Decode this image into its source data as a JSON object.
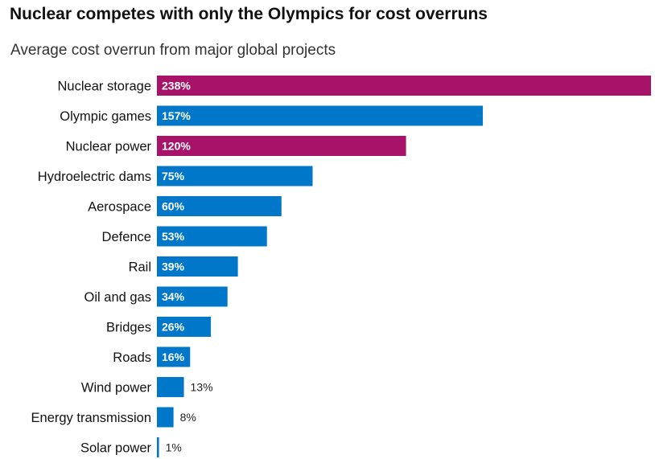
{
  "chart_data": {
    "type": "bar",
    "orientation": "horizontal",
    "title": "Nuclear competes with only the Olympics for cost overruns",
    "subtitle": "Average cost overrun from major global projects",
    "xlabel": "",
    "ylabel": "",
    "unit": "%",
    "xlim": [
      0,
      238
    ],
    "grid": false,
    "categories": [
      "Nuclear storage",
      "Olympic games",
      "Nuclear power",
      "Hydroelectric dams",
      "Aerospace",
      "Defence",
      "Rail",
      "Oil and gas",
      "Bridges",
      "Roads",
      "Wind power",
      "Energy transmission",
      "Solar power"
    ],
    "values": [
      238,
      157,
      120,
      75,
      60,
      53,
      39,
      34,
      26,
      16,
      13,
      8,
      1
    ],
    "labels": [
      "238%",
      "157%",
      "120%",
      "75%",
      "60%",
      "53%",
      "39%",
      "34%",
      "26%",
      "16%",
      "13%",
      "8%",
      "1%"
    ],
    "highlight": [
      true,
      false,
      true,
      false,
      false,
      false,
      false,
      false,
      false,
      false,
      false,
      false,
      false
    ],
    "colors": {
      "highlight": "#a8136a",
      "default": "#0077c8"
    }
  }
}
